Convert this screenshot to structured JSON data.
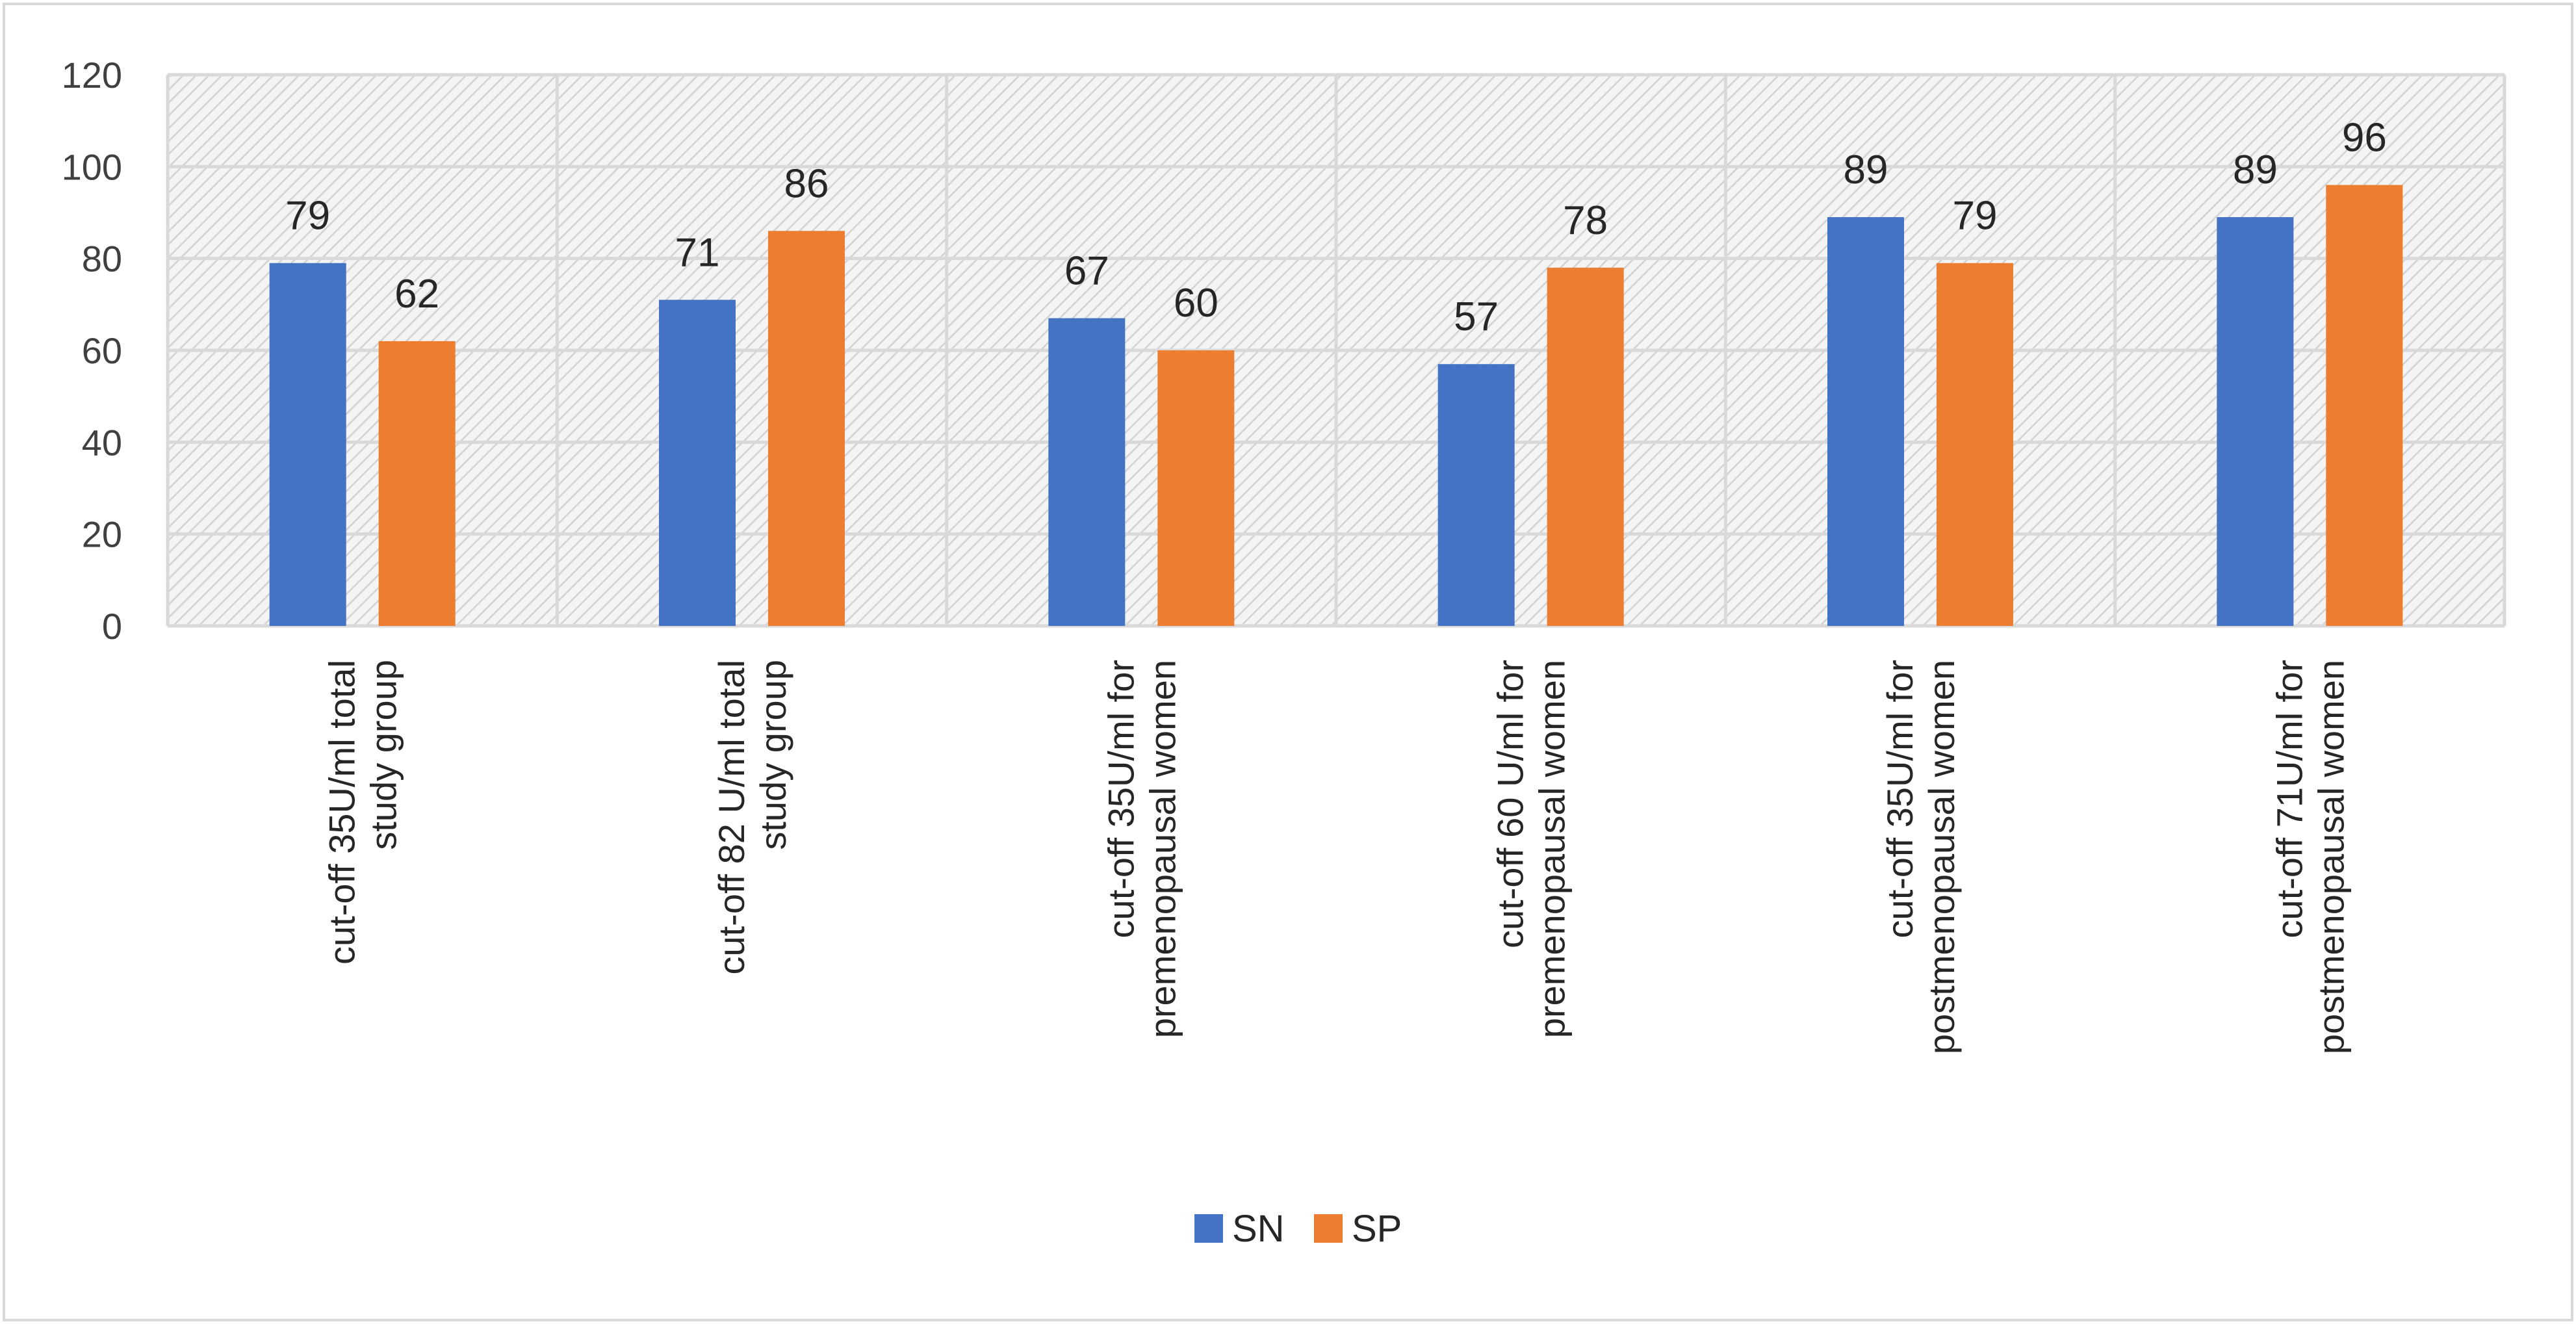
{
  "chart_data": {
    "type": "bar",
    "title": "",
    "xlabel": "",
    "ylabel": "",
    "ylim": [
      0,
      120
    ],
    "yticks": [
      0,
      20,
      40,
      60,
      80,
      100,
      120
    ],
    "grid": true,
    "legend_position": "bottom",
    "categories": [
      [
        "cut-off 35U/ml total",
        "study group"
      ],
      [
        "cut-off 82 U/ml total",
        "study group"
      ],
      [
        "cut-off 35U/ml for",
        "premenopausal women"
      ],
      [
        "cut-off  60 U/ml for",
        "premenopausal women"
      ],
      [
        "cut-off 35U/ml for",
        "postmenopausal women"
      ],
      [
        "cut-off 71U/ml for",
        "postmenopausal women"
      ]
    ],
    "series": [
      {
        "name": "SN",
        "color": "#4472C4",
        "values": [
          79,
          71,
          67,
          57,
          89,
          89
        ]
      },
      {
        "name": "SP",
        "color": "#ED7D31",
        "values": [
          62,
          86,
          60,
          78,
          79,
          96
        ]
      }
    ]
  }
}
